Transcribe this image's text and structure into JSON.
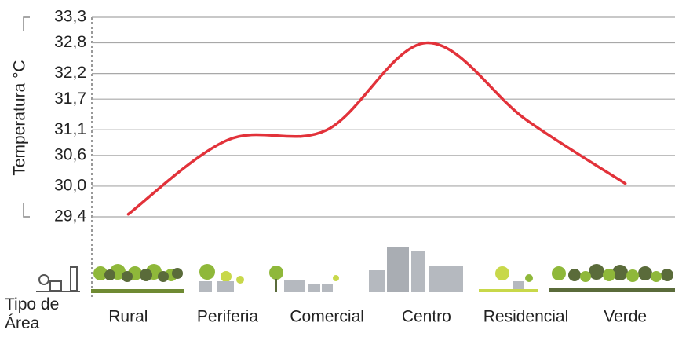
{
  "chart_data": {
    "type": "line",
    "y_label": "Temperatura °C",
    "x_label": "Tipo de Área",
    "categories": [
      "Rural",
      "Periferia",
      "Comercial",
      "Centro",
      "Residencial",
      "Verde"
    ],
    "series": [
      {
        "name": "Temperatura",
        "color": "#e2323a",
        "values": [
          29.45,
          30.9,
          31.1,
          32.8,
          31.3,
          30.05
        ]
      }
    ],
    "ylim": [
      29.4,
      33.3
    ],
    "yticks": [
      {
        "value": 29.4,
        "label": "29,4"
      },
      {
        "value": 30.0,
        "label": "30,0"
      },
      {
        "value": 30.6,
        "label": "30,6"
      },
      {
        "value": 31.1,
        "label": "31,1"
      },
      {
        "value": 31.7,
        "label": "31,7"
      },
      {
        "value": 32.2,
        "label": "32,2"
      },
      {
        "value": 32.8,
        "label": "32,8"
      },
      {
        "value": 33.3,
        "label": "33,3"
      }
    ],
    "grid": true
  }
}
